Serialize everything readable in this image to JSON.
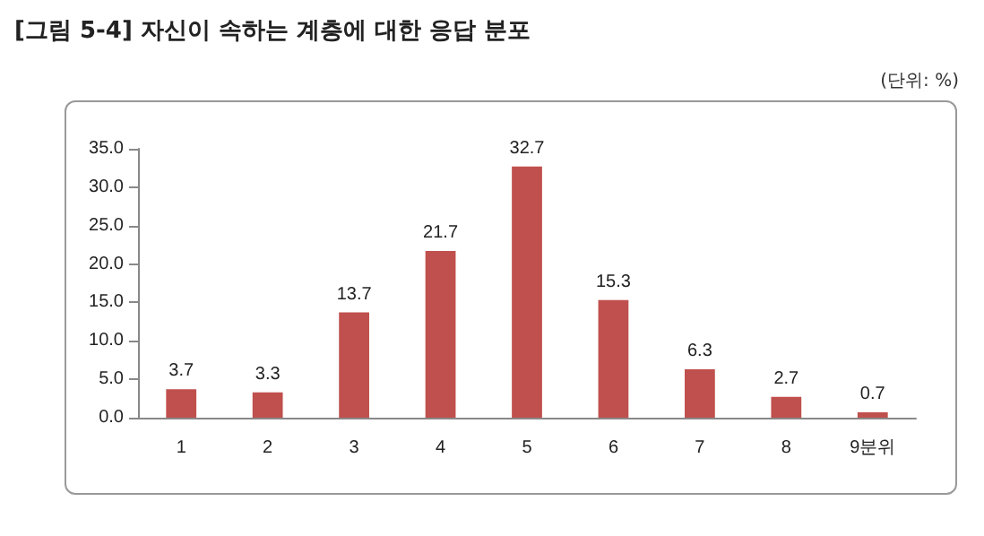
{
  "chart_data": {
    "type": "bar",
    "title": "[그림 5-4] 자신이 속하는 계층에 대한 응답 분포",
    "annotations": [
      "(단위: %)"
    ],
    "categories": [
      "1",
      "2",
      "3",
      "4",
      "5",
      "6",
      "7",
      "8",
      "9분위"
    ],
    "values": [
      3.7,
      3.3,
      13.7,
      21.7,
      32.7,
      15.3,
      6.3,
      2.7,
      0.7
    ],
    "color": "#c0504d",
    "ylim": [
      0,
      35
    ],
    "yticks": [
      {
        "value": 0,
        "label": "0.0"
      },
      {
        "value": 5,
        "label": "5.0"
      },
      {
        "value": 10,
        "label": "10.0"
      },
      {
        "value": 15,
        "label": "15.0"
      },
      {
        "value": 20,
        "label": "20.0"
      },
      {
        "value": 25,
        "label": "25.0"
      },
      {
        "value": 30,
        "label": "30.0"
      },
      {
        "value": 35,
        "label": "35.0"
      }
    ],
    "data_labels": true,
    "grid": false
  }
}
